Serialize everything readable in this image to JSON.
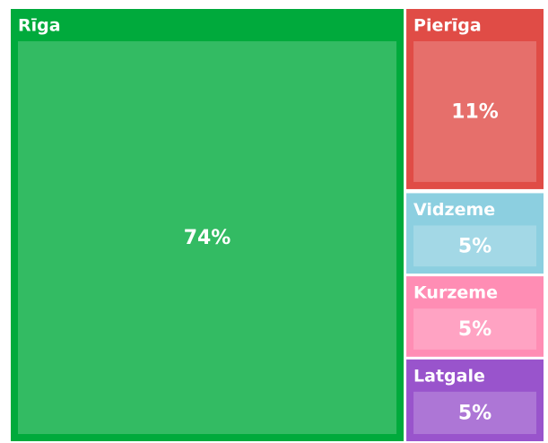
{
  "chart_data": {
    "type": "treemap",
    "categories": [
      "Rīga",
      "Pierīga",
      "Vidzeme",
      "Kurzeme",
      "Latgale"
    ],
    "values": [
      74,
      11,
      5,
      5,
      5
    ],
    "value_labels": [
      "74%",
      "11%",
      "5%",
      "5%",
      "5%"
    ],
    "colors": [
      "#00aa3c",
      "#e04c46",
      "#8ccfe0",
      "#ff8db4",
      "#9954cc"
    ]
  }
}
